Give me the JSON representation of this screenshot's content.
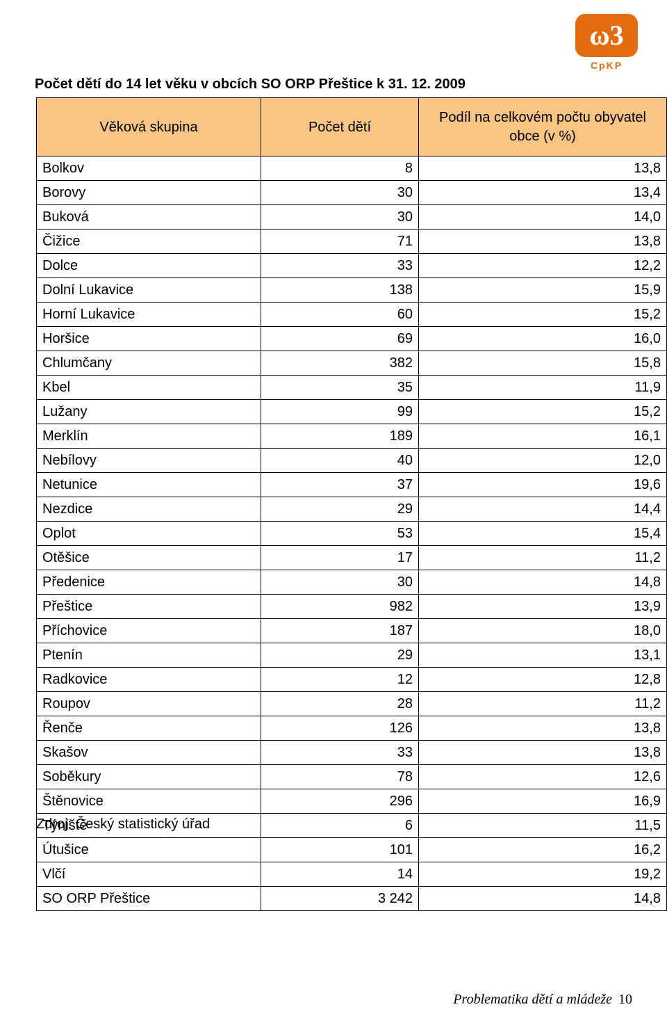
{
  "logo": {
    "bg_color": "#e36c10",
    "glyph": "ω3",
    "glyph_color": "#ffffff",
    "sub": "CpKP",
    "sub_color": "#e36c10"
  },
  "title": "Počet dětí do 14 let věku v obcích SO ORP Přeštice k 31. 12. 2009",
  "table": {
    "header_bg": "#f9c484",
    "columns": [
      "Věková skupina",
      "Počet dětí",
      "Podíl na celkovém počtu obyvatel obce (v %)"
    ],
    "rows": [
      [
        "Bolkov",
        "8",
        "13,8"
      ],
      [
        "Borovy",
        "30",
        "13,4"
      ],
      [
        "Buková",
        "30",
        "14,0"
      ],
      [
        "Čižice",
        "71",
        "13,8"
      ],
      [
        "Dolce",
        "33",
        "12,2"
      ],
      [
        "Dolní Lukavice",
        "138",
        "15,9"
      ],
      [
        "Horní Lukavice",
        "60",
        "15,2"
      ],
      [
        "Horšice",
        "69",
        "16,0"
      ],
      [
        "Chlumčany",
        "382",
        "15,8"
      ],
      [
        "Kbel",
        "35",
        "11,9"
      ],
      [
        "Lužany",
        "99",
        "15,2"
      ],
      [
        "Merklín",
        "189",
        "16,1"
      ],
      [
        "Nebílovy",
        "40",
        "12,0"
      ],
      [
        "Netunice",
        "37",
        "19,6"
      ],
      [
        "Nezdice",
        "29",
        "14,4"
      ],
      [
        "Oplot",
        "53",
        "15,4"
      ],
      [
        "Otěšice",
        "17",
        "11,2"
      ],
      [
        "Předenice",
        "30",
        "14,8"
      ],
      [
        "Přeštice",
        "982",
        "13,9"
      ],
      [
        "Příchovice",
        "187",
        "18,0"
      ],
      [
        "Ptenín",
        "29",
        "13,1"
      ],
      [
        "Radkovice",
        "12",
        "12,8"
      ],
      [
        "Roupov",
        "28",
        "11,2"
      ],
      [
        "Řenče",
        "126",
        "13,8"
      ],
      [
        "Skašov",
        "33",
        "13,8"
      ],
      [
        "Soběkury",
        "78",
        "12,6"
      ],
      [
        "Štěnovice",
        "296",
        "16,9"
      ],
      [
        "Týniště",
        "6",
        "11,5"
      ],
      [
        "Útušice",
        "101",
        "16,2"
      ],
      [
        "Vlčí",
        "14",
        "19,2"
      ],
      [
        "SO ORP Přeštice",
        "3 242",
        "14,8"
      ]
    ]
  },
  "source": "Zdroj: Český statistický úřad",
  "footer": {
    "text": "Problematika dětí a mládeže",
    "page": "10"
  }
}
